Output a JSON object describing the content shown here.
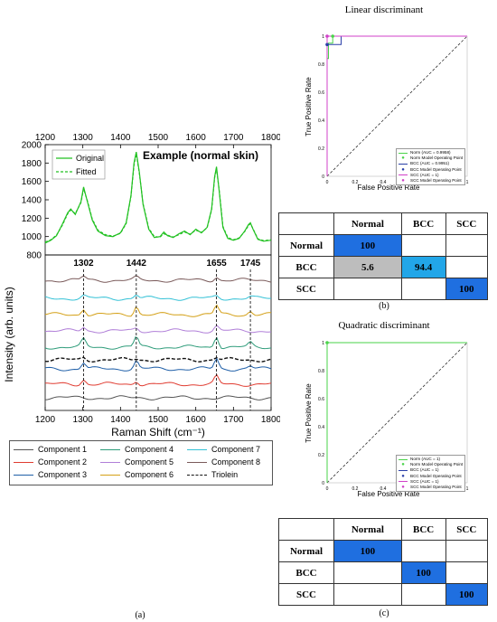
{
  "figure": {
    "caption_a": "(a)",
    "caption_b": "(b)",
    "caption_c": "(c)"
  },
  "chart_data": [
    {
      "type": "line",
      "panel": "a-top",
      "xlabel": "",
      "top_xticks": [
        "1200",
        "1300",
        "1400",
        "1500",
        "1600",
        "1700",
        "1800"
      ],
      "yticks": [
        "800",
        "1000",
        "1200",
        "1400",
        "1600",
        "1800",
        "2000"
      ],
      "ylabel": "Intensity (arb. units)",
      "xlim": [
        1200,
        1800
      ],
      "ylim": [
        800,
        2000
      ],
      "annotation": "Example (normal skin)",
      "series": [
        {
          "name": "Original",
          "color": "#22c122",
          "style": "solid",
          "x": [
            1200,
            1215,
            1230,
            1245,
            1260,
            1268,
            1280,
            1295,
            1302,
            1312,
            1325,
            1340,
            1360,
            1380,
            1400,
            1415,
            1428,
            1436,
            1442,
            1450,
            1460,
            1475,
            1490,
            1505,
            1515,
            1525,
            1540,
            1555,
            1570,
            1585,
            1600,
            1615,
            1630,
            1642,
            1650,
            1655,
            1662,
            1672,
            1685,
            1700,
            1715,
            1730,
            1740,
            1745,
            1752,
            1765,
            1780,
            1800
          ],
          "y": [
            930,
            960,
            1010,
            1130,
            1260,
            1300,
            1240,
            1380,
            1540,
            1380,
            1180,
            1060,
            1010,
            1000,
            1040,
            1150,
            1450,
            1800,
            1920,
            1700,
            1350,
            1080,
            990,
            1000,
            1050,
            1010,
            990,
            1030,
            1060,
            1020,
            1080,
            1040,
            1100,
            1300,
            1650,
            1760,
            1500,
            1100,
            980,
            960,
            980,
            1060,
            1130,
            1150,
            1080,
            970,
            950,
            960
          ]
        },
        {
          "name": "Fitted",
          "color": "#22c122",
          "style": "dashed",
          "x": [
            1200,
            1215,
            1230,
            1245,
            1260,
            1268,
            1280,
            1295,
            1302,
            1312,
            1325,
            1340,
            1360,
            1380,
            1400,
            1415,
            1428,
            1436,
            1442,
            1450,
            1460,
            1475,
            1490,
            1505,
            1515,
            1525,
            1540,
            1555,
            1570,
            1585,
            1600,
            1615,
            1630,
            1642,
            1650,
            1655,
            1662,
            1672,
            1685,
            1700,
            1715,
            1730,
            1740,
            1745,
            1752,
            1765,
            1780,
            1800
          ],
          "y": [
            940,
            965,
            1015,
            1120,
            1250,
            1290,
            1250,
            1370,
            1520,
            1390,
            1190,
            1070,
            1020,
            1005,
            1035,
            1140,
            1440,
            1780,
            1900,
            1690,
            1360,
            1090,
            1000,
            995,
            1030,
            1015,
            995,
            1020,
            1050,
            1025,
            1070,
            1045,
            1095,
            1290,
            1640,
            1740,
            1510,
            1110,
            990,
            965,
            985,
            1055,
            1120,
            1140,
            1085,
            975,
            955,
            965
          ]
        }
      ]
    },
    {
      "type": "line",
      "panel": "a-bottom",
      "xlabel": "Raman Shift (cm⁻¹)",
      "xticks": [
        "1200",
        "1300",
        "1400",
        "1500",
        "1600",
        "1700",
        "1800"
      ],
      "xlim": [
        1200,
        1800
      ],
      "peak_labels": [
        "1302",
        "1442",
        "1655",
        "1745"
      ],
      "peak_positions": [
        1302,
        1442,
        1655,
        1745
      ],
      "series_names": [
        "Component 1",
        "Component 2",
        "Component 3",
        "Component 4",
        "Component 5",
        "Component 6",
        "Component 7",
        "Component 8",
        "Triolein"
      ],
      "series_colors": [
        "#555555",
        "#e03c31",
        "#1f5fa8",
        "#2e9c7a",
        "#b07fd8",
        "#d4a017",
        "#33c1d6",
        "#7a5a5a",
        "#111111"
      ]
    },
    {
      "type": "line",
      "panel": "b",
      "title": "Linear discriminant",
      "xlabel": "False Positive Rate",
      "ylabel": "True Positive Rate",
      "xlim": [
        0,
        1
      ],
      "ylim": [
        0,
        1
      ],
      "ticks": [
        "0",
        "0.2",
        "0.4",
        "0.6",
        "0.8",
        "1"
      ],
      "legend": [
        {
          "label": "Norm (AUC = 0.9958)",
          "color": "#4ad34a",
          "kind": "line"
        },
        {
          "label": "Norm Model Operating Point",
          "color": "#4ad34a",
          "kind": "dot"
        },
        {
          "label": "BCC (AUC = 0.9951)",
          "color": "#2a3fa8",
          "kind": "line"
        },
        {
          "label": "BCC Model Operating Point",
          "color": "#2a3fa8",
          "kind": "dot"
        },
        {
          "label": "SCC (AUC = 1)",
          "color": "#d040c8",
          "kind": "line"
        },
        {
          "label": "SCC Model Operating Point",
          "color": "#d040c8",
          "kind": "dot"
        }
      ],
      "series": [
        {
          "name": "Norm",
          "color": "#4ad34a",
          "x": [
            0,
            0,
            0.01,
            0.01,
            0.04,
            0.04,
            1
          ],
          "y": [
            0,
            0.84,
            0.84,
            0.95,
            0.95,
            1,
            1
          ]
        },
        {
          "name": "BCC",
          "color": "#2a3fa8",
          "x": [
            0,
            0,
            0.1,
            0.1,
            1
          ],
          "y": [
            0,
            0.94,
            0.94,
            1,
            1
          ]
        },
        {
          "name": "SCC",
          "color": "#d040c8",
          "x": [
            0,
            0,
            1
          ],
          "y": [
            0,
            1,
            1
          ]
        }
      ],
      "operating_points": [
        {
          "x": 0.04,
          "y": 1,
          "color": "#4ad34a"
        },
        {
          "x": 0.0,
          "y": 0.94,
          "color": "#2a3fa8"
        },
        {
          "x": 0.0,
          "y": 1,
          "color": "#d040c8"
        }
      ]
    },
    {
      "type": "line",
      "panel": "c",
      "title": "Quadratic discriminant",
      "xlabel": "False Positive Rate",
      "ylabel": "True Positive Rate",
      "xlim": [
        0,
        1
      ],
      "ylim": [
        0,
        1
      ],
      "ticks": [
        "0",
        "0.2",
        "0.4",
        "0.6",
        "0.8",
        "1"
      ],
      "legend": [
        {
          "label": "Norm (AUC = 1)",
          "color": "#4ad34a",
          "kind": "line"
        },
        {
          "label": "Norm Model Operating Point",
          "color": "#4ad34a",
          "kind": "dot"
        },
        {
          "label": "BCC (AUC = 1)",
          "color": "#2a3fa8",
          "kind": "line"
        },
        {
          "label": "BCC Model Operating Point",
          "color": "#2a3fa8",
          "kind": "dot"
        },
        {
          "label": "SCC (AUC = 1)",
          "color": "#d040c8",
          "kind": "line"
        },
        {
          "label": "SCC Model Operating Point",
          "color": "#d040c8",
          "kind": "dot"
        }
      ],
      "series": [
        {
          "name": "Norm",
          "color": "#4ad34a",
          "x": [
            0,
            0,
            1
          ],
          "y": [
            0,
            1,
            1
          ]
        }
      ],
      "operating_points": [
        {
          "x": 0.0,
          "y": 1,
          "color": "#4ad34a"
        }
      ]
    },
    {
      "type": "table",
      "panel": "b-matrix",
      "columns": [
        "Normal",
        "BCC",
        "SCC"
      ],
      "rows": [
        {
          "label": "Normal",
          "cells": [
            "100",
            "",
            ""
          ]
        },
        {
          "label": "BCC",
          "cells": [
            "5.6",
            "94.4",
            ""
          ]
        },
        {
          "label": "SCC",
          "cells": [
            "",
            "",
            "100"
          ]
        }
      ]
    },
    {
      "type": "table",
      "panel": "c-matrix",
      "columns": [
        "Normal",
        "BCC",
        "SCC"
      ],
      "rows": [
        {
          "label": "Normal",
          "cells": [
            "100",
            "",
            ""
          ]
        },
        {
          "label": "BCC",
          "cells": [
            "",
            "100",
            ""
          ]
        },
        {
          "label": "SCC",
          "cells": [
            "",
            "",
            "100"
          ]
        }
      ]
    }
  ]
}
